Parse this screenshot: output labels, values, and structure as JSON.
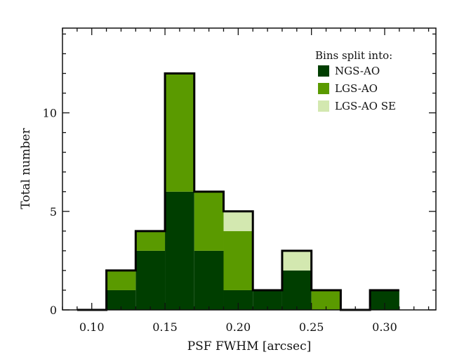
{
  "chart_data": {
    "type": "bar",
    "subtype": "stacked-histogram",
    "title": "",
    "xlabel": "PSF FWHM  [arcsec]",
    "ylabel": "Total number",
    "xlim": [
      0.08,
      0.335
    ],
    "ylim": [
      0,
      14.3
    ],
    "xticks": [
      0.1,
      0.15,
      0.2,
      0.25,
      0.3
    ],
    "xtick_labels": [
      "0.10",
      "0.15",
      "0.20",
      "0.25",
      "0.30"
    ],
    "yticks": [
      0,
      5,
      10
    ],
    "ytick_labels": [
      "0",
      "5",
      "10"
    ],
    "bin_edges": [
      0.09,
      0.11,
      0.13,
      0.15,
      0.17,
      0.19,
      0.21,
      0.23,
      0.25,
      0.27,
      0.29,
      0.31
    ],
    "series": [
      {
        "name": "NGS-AO",
        "color": "#003e00",
        "values": [
          0,
          1,
          3,
          6,
          3,
          1,
          1,
          2,
          0,
          0,
          1
        ]
      },
      {
        "name": "LGS-AO",
        "color": "#5a9a00",
        "values": [
          0,
          1,
          1,
          6,
          3,
          3,
          0,
          0,
          1,
          0,
          0
        ]
      },
      {
        "name": "LGS-AO SE",
        "color": "#d3e8b0",
        "values": [
          0,
          0,
          0,
          0,
          0,
          1,
          0,
          1,
          0,
          0,
          0
        ]
      }
    ],
    "totals": [
      0,
      2,
      4,
      12,
      6,
      5,
      1,
      3,
      1,
      0,
      1
    ],
    "legend": {
      "title": "Bins split into:",
      "position": "top-right"
    },
    "grid": false
  }
}
